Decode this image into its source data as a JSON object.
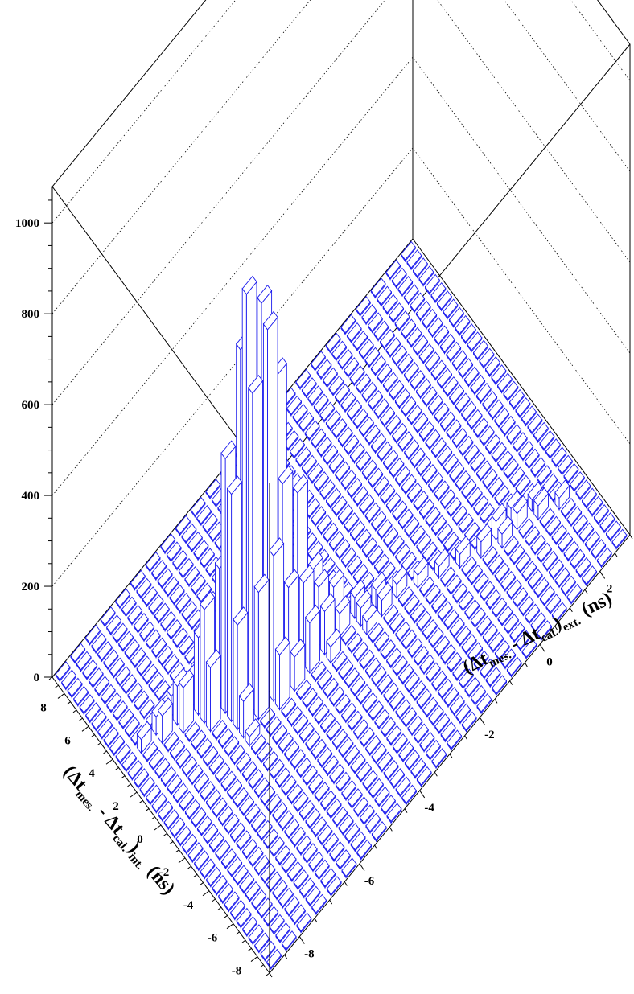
{
  "chart_data": {
    "type": "lego3d",
    "title": "",
    "xlabel": {
      "open": "(",
      "delta1": "Δt",
      "sub1": "mes.",
      "minus": " - ",
      "delta2": "Δt",
      "sub2": "cal.",
      "close": ")",
      "sub3": "ext.",
      "unit": "(ns)"
    },
    "ylabel": {
      "open": "(",
      "delta1": "Δt",
      "sub1": "mes.",
      "minus": " - ",
      "delta2": "Δt",
      "sub2": "cal.",
      "close": ")",
      "sub3": "int.",
      "unit": "(ns)"
    },
    "zlabel": "",
    "xlim": [
      -9,
      3
    ],
    "ylim": [
      -9,
      9
    ],
    "zlim": [
      0,
      1080
    ],
    "x_ticks": [
      "-8",
      "-6",
      "-4",
      "-2",
      "0",
      "2"
    ],
    "y_ticks": [
      "-8",
      "-6",
      "-4",
      "-2",
      "0",
      "2",
      "4",
      "6",
      "8"
    ],
    "z_ticks": [
      "0",
      "200",
      "400",
      "600",
      "800",
      "1000"
    ],
    "grid": "z-dotted-on-back-walls",
    "bar_color": "#1a1aee",
    "bins": {
      "x_min": -9,
      "x_max": 3,
      "y_min": -9,
      "y_max": 9,
      "width": 0.5
    },
    "peaks": [
      {
        "x": -6.0,
        "y": 0.5,
        "z": 900
      },
      {
        "x": -5.5,
        "y": 0.5,
        "z": 840
      },
      {
        "x": -5.5,
        "y": 0.0,
        "z": 800
      },
      {
        "x": -6.0,
        "y": 1.0,
        "z": 760
      },
      {
        "x": -5.5,
        "y": 1.0,
        "z": 720
      },
      {
        "x": -6.0,
        "y": 0.0,
        "z": 700
      },
      {
        "x": -5.0,
        "y": 0.5,
        "z": 640
      },
      {
        "x": -6.5,
        "y": 1.0,
        "z": 560
      },
      {
        "x": -6.5,
        "y": 0.5,
        "z": 500
      },
      {
        "x": -6.0,
        "y": 1.5,
        "z": 460
      },
      {
        "x": -5.0,
        "y": 0.0,
        "z": 420
      },
      {
        "x": -4.5,
        "y": 0.0,
        "z": 360
      },
      {
        "x": -5.0,
        "y": 1.0,
        "z": 340
      },
      {
        "x": -5.5,
        "y": -0.5,
        "z": 320
      },
      {
        "x": -6.5,
        "y": 1.5,
        "z": 300
      },
      {
        "x": -6.0,
        "y": -0.5,
        "z": 280
      },
      {
        "x": -7.0,
        "y": 1.5,
        "z": 250
      },
      {
        "x": -6.5,
        "y": 0.0,
        "z": 230
      },
      {
        "x": -5.0,
        "y": -0.5,
        "z": 210
      },
      {
        "x": -4.5,
        "y": 0.5,
        "z": 200
      },
      {
        "x": -4.5,
        "y": -0.5,
        "z": 180
      },
      {
        "x": -7.0,
        "y": 2.0,
        "z": 170
      },
      {
        "x": -6.5,
        "y": 2.0,
        "z": 160
      },
      {
        "x": -5.5,
        "y": 1.5,
        "z": 150
      },
      {
        "x": -4.0,
        "y": 0.0,
        "z": 150
      },
      {
        "x": -7.0,
        "y": 1.0,
        "z": 140
      },
      {
        "x": -4.0,
        "y": -0.5,
        "z": 130
      },
      {
        "x": -5.5,
        "y": -1.0,
        "z": 120
      },
      {
        "x": -6.0,
        "y": 2.0,
        "z": 120
      },
      {
        "x": -4.5,
        "y": -1.0,
        "z": 110
      },
      {
        "x": -7.5,
        "y": 2.0,
        "z": 100
      },
      {
        "x": -4.0,
        "y": -1.0,
        "z": 95
      },
      {
        "x": -3.5,
        "y": -0.5,
        "z": 90
      },
      {
        "x": -7.5,
        "y": 2.5,
        "z": 85
      },
      {
        "x": -6.5,
        "y": -0.5,
        "z": 80
      },
      {
        "x": -5.0,
        "y": -1.0,
        "z": 75
      },
      {
        "x": -3.5,
        "y": 0.0,
        "z": 70
      },
      {
        "x": -7.0,
        "y": 2.5,
        "z": 65
      },
      {
        "x": -8.0,
        "y": 2.5,
        "z": 60
      },
      {
        "x": -6.0,
        "y": 2.5,
        "z": 55
      },
      {
        "x": -3.5,
        "y": -1.0,
        "z": 50
      },
      {
        "x": -7.5,
        "y": 3.0,
        "z": 45
      },
      {
        "x": -3.0,
        "y": -1.0,
        "z": 45
      },
      {
        "x": -3.0,
        "y": -1.5,
        "z": 40
      },
      {
        "x": -2.5,
        "y": -1.5,
        "z": 40
      },
      {
        "x": -8.0,
        "y": 3.0,
        "z": 40
      },
      {
        "x": -6.5,
        "y": 2.5,
        "z": 40
      },
      {
        "x": -4.0,
        "y": -1.5,
        "z": 35
      },
      {
        "x": -2.5,
        "y": -2.0,
        "z": 35
      },
      {
        "x": -8.5,
        "y": 3.0,
        "z": 30
      },
      {
        "x": -2.0,
        "y": -2.0,
        "z": 30
      },
      {
        "x": -3.0,
        "y": -2.0,
        "z": 28
      },
      {
        "x": -1.5,
        "y": -2.5,
        "z": 28
      },
      {
        "x": 0.5,
        "y": -4.0,
        "z": 40
      },
      {
        "x": 1.0,
        "y": -4.5,
        "z": 35
      },
      {
        "x": 0.0,
        "y": -4.0,
        "z": 35
      },
      {
        "x": 1.5,
        "y": -5.0,
        "z": 30
      },
      {
        "x": 0.5,
        "y": -4.5,
        "z": 30
      },
      {
        "x": 1.0,
        "y": -4.0,
        "z": 28
      },
      {
        "x": -0.5,
        "y": -3.5,
        "z": 30
      },
      {
        "x": 2.0,
        "y": -5.5,
        "z": 25
      },
      {
        "x": 1.5,
        "y": -4.5,
        "z": 25
      },
      {
        "x": -1.0,
        "y": -3.0,
        "z": 25
      },
      {
        "x": -5.5,
        "y": 3.5,
        "z": 50
      },
      {
        "x": -5.0,
        "y": 3.5,
        "z": 45
      },
      {
        "x": -4.5,
        "y": 3.5,
        "z": 40
      },
      {
        "x": -5.0,
        "y": 4.0,
        "z": 35
      },
      {
        "x": -4.5,
        "y": 4.0,
        "z": 30
      },
      {
        "x": -4.0,
        "y": 3.5,
        "z": 28
      },
      {
        "x": -5.5,
        "y": 4.0,
        "z": 25
      },
      {
        "x": -4.0,
        "y": 4.0,
        "z": 22
      },
      {
        "x": -3.5,
        "y": 4.0,
        "z": 22
      },
      {
        "x": -6.0,
        "y": 3.5,
        "z": 22
      },
      {
        "x": -3.5,
        "y": 3.5,
        "z": 20
      },
      {
        "x": -6.5,
        "y": -1.0,
        "z": 20
      },
      {
        "x": -7.0,
        "y": 3.0,
        "z": 20
      }
    ],
    "baseline_count": 3
  }
}
